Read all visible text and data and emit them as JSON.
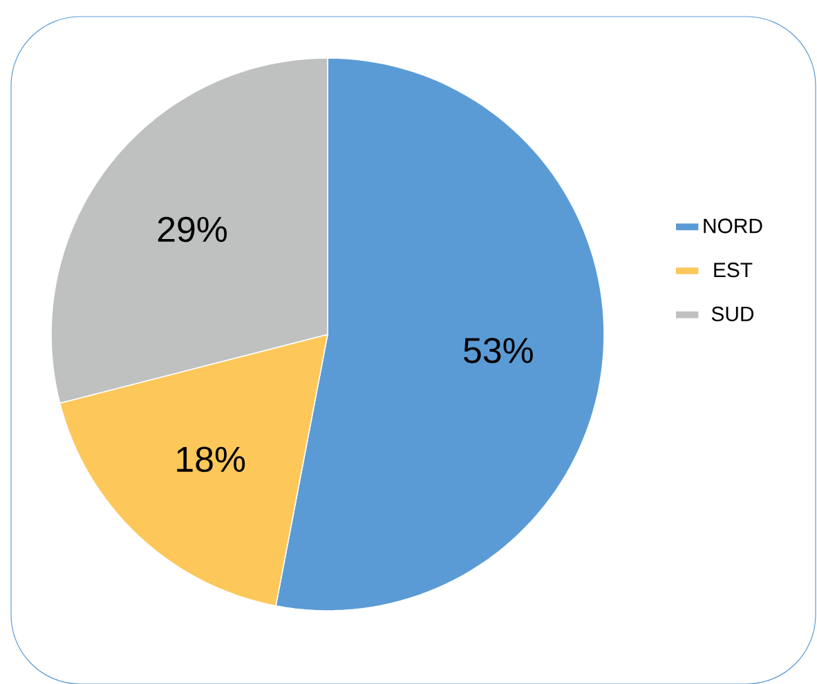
{
  "chart_data": {
    "type": "pie",
    "categories": [
      "NORD",
      "EST",
      "SUD"
    ],
    "values": [
      53,
      18,
      29
    ],
    "colors": [
      "#5b9bd5",
      "#fdc75a",
      "#bfc1c1"
    ],
    "value_labels": [
      "53%",
      "18%",
      "29%"
    ],
    "legend": "right"
  }
}
